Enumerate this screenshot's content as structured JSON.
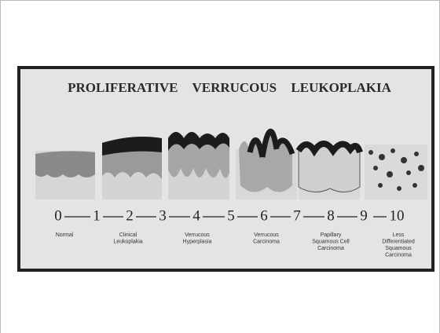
{
  "slide": {
    "title": "PROLIFERATIVE VERRUCOUS LEUKOPLAKIA",
    "scale": [
      0,
      1,
      2,
      3,
      4,
      5,
      6,
      7,
      8,
      9,
      10
    ],
    "stages": [
      [
        "Normal"
      ],
      [
        "Clinical",
        "Leukoplakia"
      ],
      [
        "Verrucous",
        "Hyperplasia"
      ],
      [
        "Verrucous",
        "Carcinoma"
      ],
      [
        "Papillary",
        "Squamous Cell",
        "Carcinoma"
      ],
      [
        "Less",
        "Differentiated",
        "Squamous",
        "Carcinoma"
      ]
    ]
  }
}
